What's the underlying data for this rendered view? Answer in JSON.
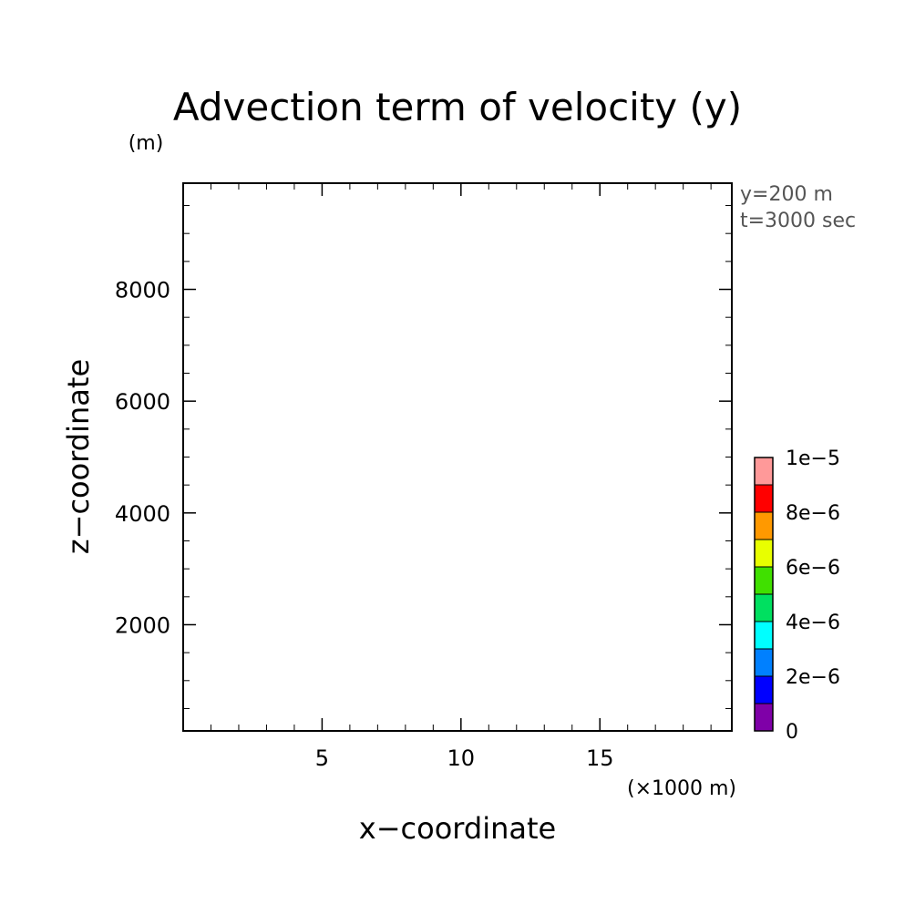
{
  "chart_data": {
    "type": "heatmap",
    "title": "Advection term of velocity (y)",
    "xlabel": "x−coordinate",
    "ylabel": "z−coordinate",
    "x_unit": "(×1000 m)",
    "y_unit": "(m)",
    "annotations": [
      "y=200 m",
      "t=3000 sec"
    ],
    "xlim": [
      0,
      19.75
    ],
    "ylim": [
      100,
      9900
    ],
    "x_ticks": [
      5,
      10,
      15
    ],
    "x_tick_labels": [
      "5",
      "10",
      "15"
    ],
    "y_ticks": [
      2000,
      4000,
      6000,
      8000
    ],
    "y_tick_labels": [
      "2000",
      "4000",
      "6000",
      "8000"
    ],
    "x_minor_step": 1,
    "y_minor_step": 500,
    "field": "empty",
    "colorbar": {
      "levels": [
        0,
        1e-06,
        2e-06,
        3e-06,
        4e-06,
        5e-06,
        6e-06,
        7e-06,
        8e-06,
        9e-06,
        1e-05
      ],
      "colors": [
        "#7f00a8",
        "#0000ff",
        "#0080ff",
        "#00ffff",
        "#00e060",
        "#40e000",
        "#e8ff00",
        "#ff9900",
        "#ff0000",
        "#ff9999"
      ],
      "tick_labels": [
        "0",
        "2e−6",
        "4e−6",
        "6e−6",
        "8e−6",
        "1e−5"
      ]
    }
  }
}
